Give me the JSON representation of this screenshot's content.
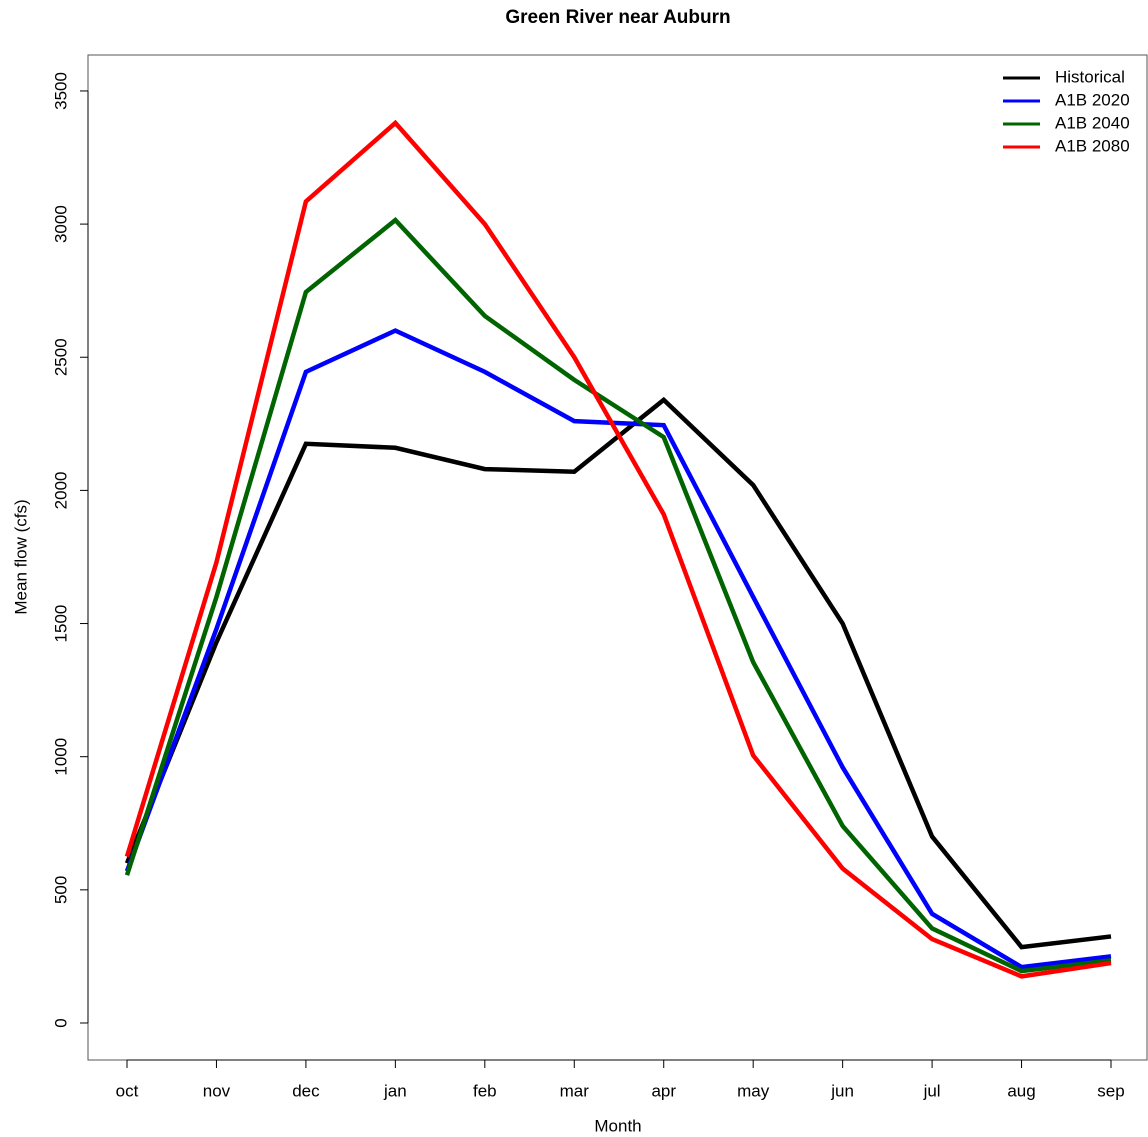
{
  "chart_data": {
    "type": "line",
    "title": "Green River near Auburn",
    "x_label": "Month",
    "y_label": "Mean flow (cfs)",
    "categories": [
      "oct",
      "nov",
      "dec",
      "jan",
      "feb",
      "mar",
      "apr",
      "may",
      "jun",
      "jul",
      "aug",
      "sep"
    ],
    "series": [
      {
        "name": "Historical",
        "color": "#000000",
        "values": [
          600,
          1430,
          2175,
          2160,
          2080,
          2070,
          2340,
          2020,
          1500,
          700,
          285,
          325
        ]
      },
      {
        "name": "A1B 2020",
        "color": "#0000ff",
        "values": [
          570,
          1480,
          2445,
          2600,
          2445,
          2260,
          2245,
          1600,
          960,
          410,
          210,
          250
        ]
      },
      {
        "name": "A1B 2040",
        "color": "#006400",
        "values": [
          555,
          1600,
          2745,
          3015,
          2655,
          2415,
          2200,
          1355,
          740,
          355,
          195,
          235
        ]
      },
      {
        "name": "A1B 2080",
        "color": "#ff0000",
        "values": [
          625,
          1730,
          3085,
          3380,
          3000,
          2500,
          1910,
          1005,
          580,
          315,
          175,
          225
        ]
      }
    ],
    "ylim": [
      -139,
      3635
    ],
    "yticks": [
      0,
      500,
      1000,
      1500,
      2000,
      2500,
      3000,
      3500
    ],
    "legend": "top-right"
  }
}
